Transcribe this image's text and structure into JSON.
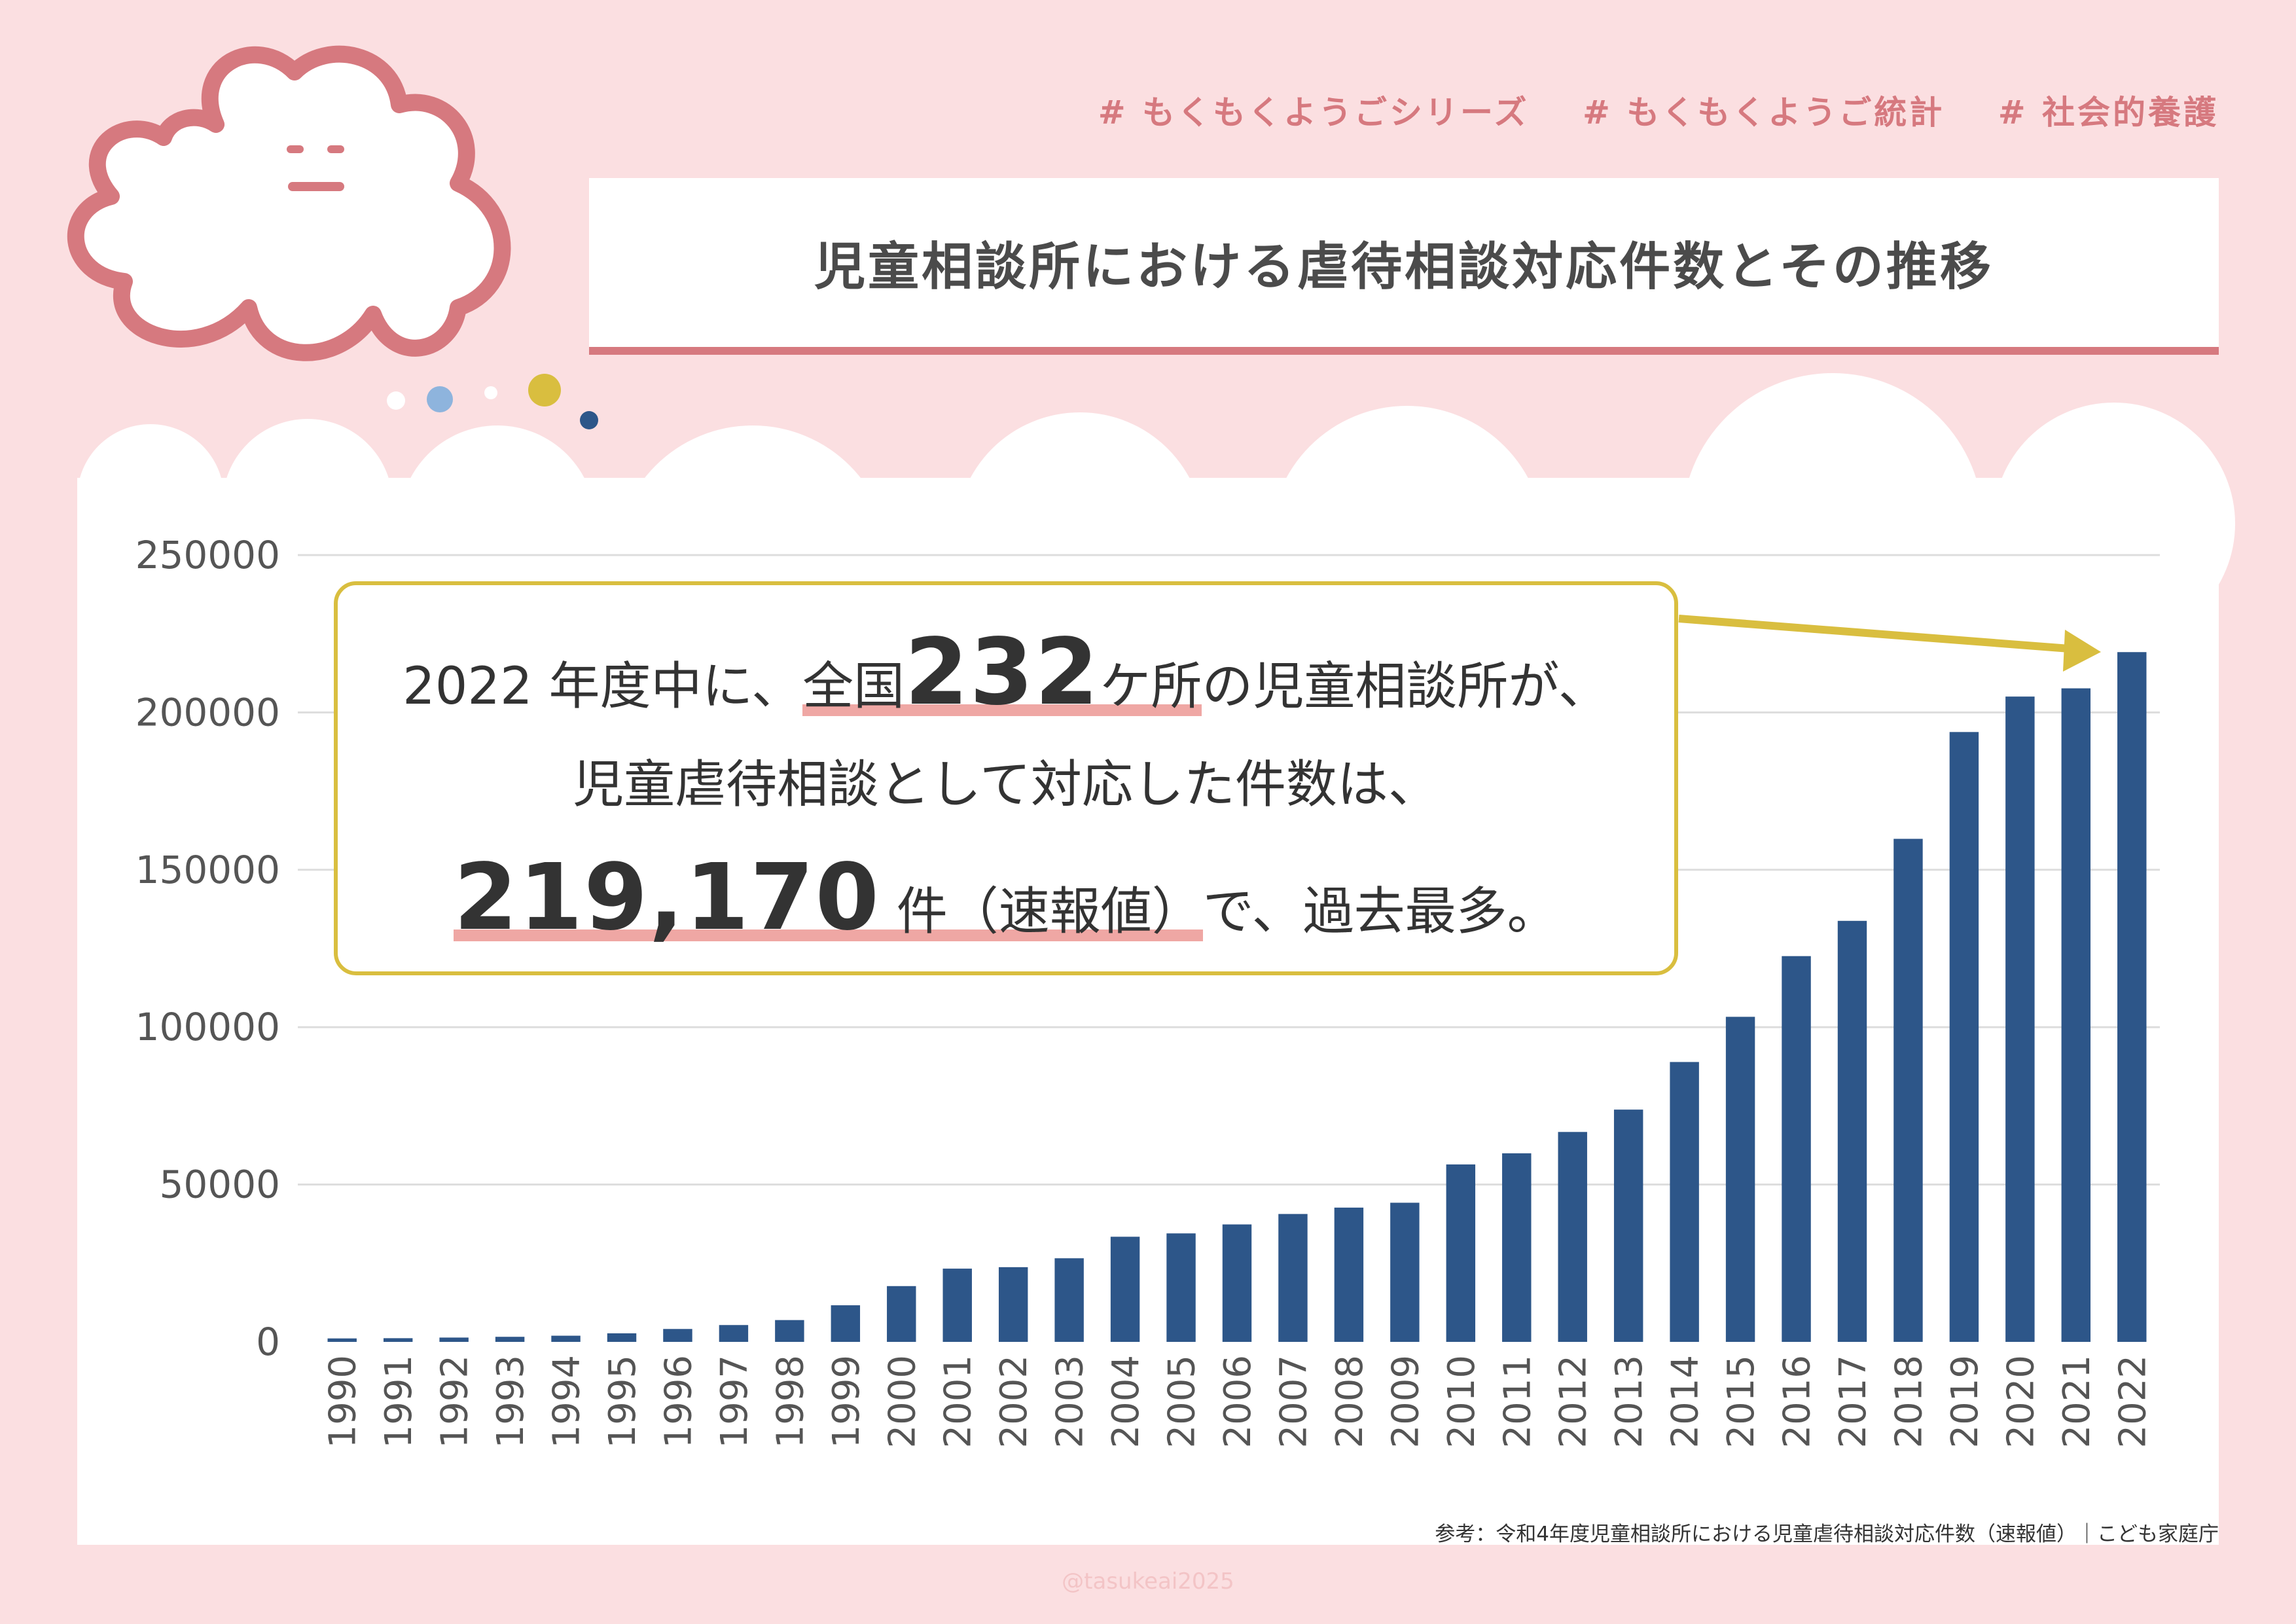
{
  "tags": [
    "# もくもくようごシリーズ",
    "# もくもくようご統計",
    "# 社会的養護"
  ],
  "title": "児童相談所における虐待相談対応件数とその推移",
  "callout": {
    "line1_prefix": "2022 年度中に、",
    "line1_under_a": "全国",
    "line1_big": "232",
    "line1_under_b": "ケ所",
    "line1_suffix": "の児童相談所が、",
    "line2": "児童虐待相談として対応した件数は、",
    "line3_big": "219,170",
    "line3_under": "件（速報値）",
    "line3_suffix": "で、過去最多。"
  },
  "source": "参考：令和4年度児童相談所における児童虐待相談対応件数（速報値）｜こども家庭庁",
  "credit": "@tasukeai2025",
  "colors": {
    "bar": "#2d5689",
    "accent": "#d6797f",
    "callout_border": "#d9be3f",
    "background": "#fbdfe1"
  },
  "chart_data": {
    "type": "bar",
    "title": "",
    "xlabel": "",
    "ylabel": "",
    "ylim": [
      0,
      250000
    ],
    "yticks": [
      0,
      50000,
      100000,
      150000,
      200000,
      250000
    ],
    "grid": true,
    "categories": [
      "1990",
      "1991",
      "1992",
      "1993",
      "1994",
      "1995",
      "1996",
      "1997",
      "1998",
      "1999",
      "2000",
      "2001",
      "2002",
      "2003",
      "2004",
      "2005",
      "2006",
      "2007",
      "2008",
      "2009",
      "2010",
      "2011",
      "2012",
      "2013",
      "2014",
      "2015",
      "2016",
      "2017",
      "2018",
      "2019",
      "2020",
      "2021",
      "2022"
    ],
    "values": [
      1101,
      1171,
      1372,
      1611,
      1961,
      2722,
      4102,
      5352,
      6932,
      11631,
      17725,
      23274,
      23738,
      26569,
      33408,
      34472,
      37323,
      40639,
      42664,
      44211,
      56384,
      59919,
      66701,
      73802,
      88931,
      103286,
      122575,
      133778,
      159838,
      193780,
      205044,
      207660,
      219170
    ]
  }
}
